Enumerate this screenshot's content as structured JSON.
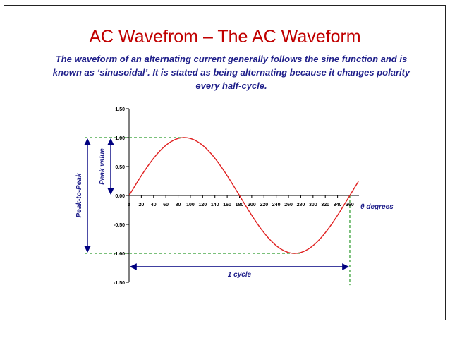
{
  "slide": {
    "title": "AC Wavefrom – The AC Waveform",
    "subtitle": "The waveform of an alternating current generally follows the sine function and is known as ‘sinusoidal’. It is stated as being alternating because it changes polarity every half-cycle."
  },
  "chart_data": {
    "type": "line",
    "title": "",
    "xlabel": "θ degrees",
    "ylabel": "",
    "xlim": [
      0,
      375
    ],
    "ylim": [
      -1.5,
      1.5
    ],
    "x_ticks": [
      "0",
      "20",
      "40",
      "60",
      "80",
      "100",
      "120",
      "140",
      "160",
      "180",
      "200",
      "220",
      "240",
      "260",
      "280",
      "300",
      "320",
      "340",
      "360"
    ],
    "y_ticks": [
      "1.50",
      "1.00",
      "0.50",
      "0.00",
      "-0.50",
      "-1.00",
      "-1.50"
    ],
    "grid": false,
    "series": [
      {
        "function": "sin(x)",
        "x_range": [
          0,
          375
        ],
        "color": "#e02020"
      }
    ],
    "annotations": {
      "peak_value": "Peak value",
      "peak_to_peak": "Peak-to-Peak",
      "cycle": "1 cycle"
    },
    "colors": {
      "curve": "#e02020",
      "guide": "#2a9a2a",
      "arrow": "#000080",
      "label": "#1f1f8a",
      "axis": "#000000"
    }
  }
}
